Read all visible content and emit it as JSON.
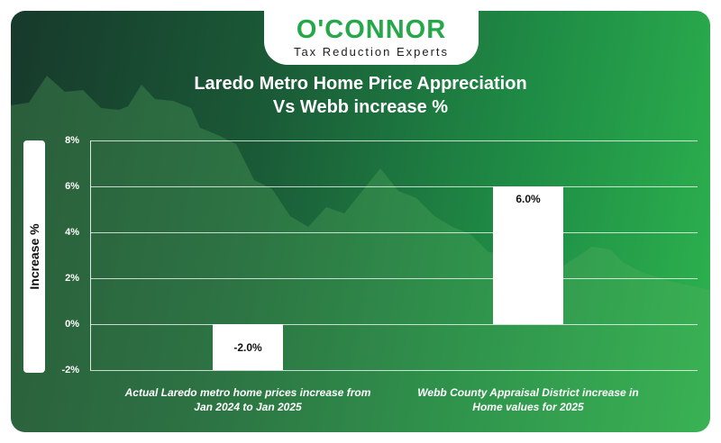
{
  "brand": {
    "wordmark": "O'CONNOR",
    "tagline": "Tax Reduction Experts"
  },
  "colors": {
    "brand_green": "#26a84a",
    "bar_fill": "#ffffff",
    "background_dark": "#17392b",
    "background_light": "#2db34f"
  },
  "chart_data": {
    "type": "bar",
    "title_line1": "Laredo Metro Home Price Appreciation",
    "title_line2": "Vs Webb increase %",
    "ylabel": "Increase %",
    "xlabel": "",
    "ylim": [
      -2,
      8
    ],
    "yticks": [
      -2,
      0,
      2,
      4,
      6,
      8
    ],
    "ytick_labels": [
      "-2%",
      "0%",
      "2%",
      "4%",
      "6%",
      "8%"
    ],
    "grid": true,
    "categories": [
      {
        "line1": "Actual Laredo metro home prices increase from",
        "line2": "Jan 2024 to Jan 2025"
      },
      {
        "line1": "Webb County Appraisal District increase in",
        "line2": "Home values for 2025"
      }
    ],
    "values": [
      -2.0,
      6.0
    ],
    "value_labels": [
      "-2.0%",
      "6.0%"
    ]
  }
}
